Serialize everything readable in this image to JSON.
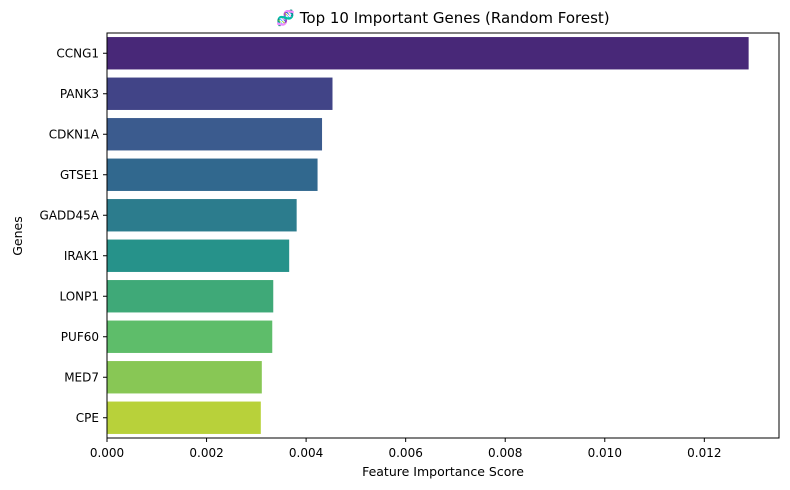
{
  "chart_data": {
    "type": "bar",
    "orientation": "horizontal",
    "title": "🧬 Top 10 Important Genes (Random Forest)",
    "xlabel": "Feature Importance Score",
    "ylabel": "Genes",
    "categories": [
      "CCNG1",
      "PANK3",
      "CDKN1A",
      "GTSE1",
      "GADD45A",
      "IRAK1",
      "LONP1",
      "PUF60",
      "MED7",
      "CPE"
    ],
    "values": [
      0.01289,
      0.00453,
      0.00432,
      0.00423,
      0.00381,
      0.00366,
      0.00334,
      0.00332,
      0.00311,
      0.00309
    ],
    "colors": [
      "#482878",
      "#414487",
      "#3b5b8e",
      "#31688e",
      "#2c7c8d",
      "#26928a",
      "#3fa978",
      "#5ebd6a",
      "#88c755",
      "#b8d13a"
    ],
    "xlim": [
      0,
      0.0135
    ],
    "xticks": [
      "0.000",
      "0.002",
      "0.004",
      "0.006",
      "0.008",
      "0.010",
      "0.012"
    ],
    "xtick_values": [
      0,
      0.002,
      0.004,
      0.006,
      0.008,
      0.01,
      0.012
    ],
    "grid": false,
    "legend": "none"
  }
}
